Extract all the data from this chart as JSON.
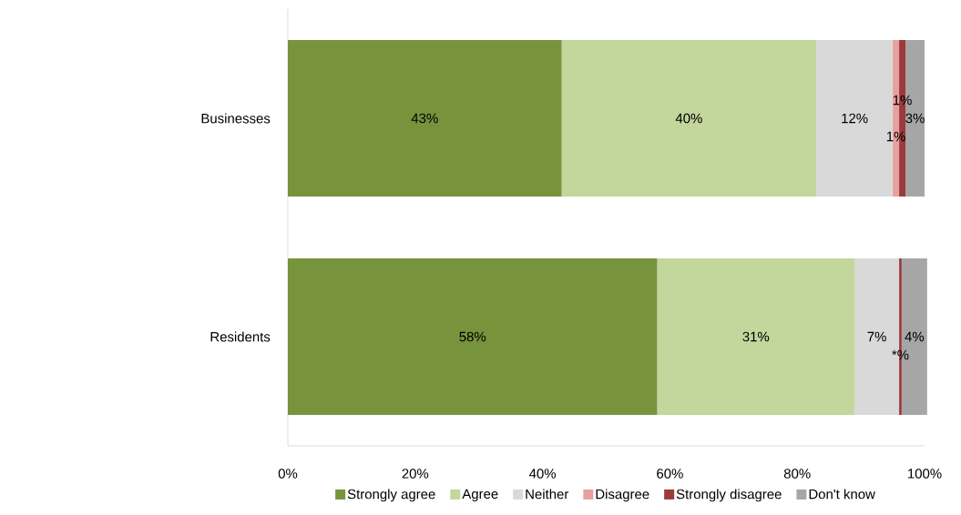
{
  "chart_data": {
    "type": "bar",
    "orientation": "horizontal",
    "stacked": true,
    "categories": [
      "Businesses",
      "Residents"
    ],
    "xlim": [
      0,
      100
    ],
    "xticks": [
      {
        "value": 0,
        "label": "0%"
      },
      {
        "value": 20,
        "label": "20%"
      },
      {
        "value": 40,
        "label": "40%"
      },
      {
        "value": 60,
        "label": "60%"
      },
      {
        "value": 80,
        "label": "80%"
      },
      {
        "value": 100,
        "label": "100%"
      }
    ],
    "legend": "bottom",
    "grid": false,
    "series": [
      {
        "name": "Strongly agree",
        "color": "#77933c",
        "values": [
          43,
          58
        ],
        "value_labels": [
          "43%",
          "58%"
        ]
      },
      {
        "name": "Agree",
        "color": "#c3d69b",
        "values": [
          40,
          31
        ],
        "value_labels": [
          "40%",
          "31%"
        ]
      },
      {
        "name": "Neither",
        "color": "#d9d9d9",
        "values": [
          12,
          7
        ],
        "value_labels": [
          "12%",
          "7%"
        ]
      },
      {
        "name": "Disagree",
        "color": "#e6a0a0",
        "values": [
          1,
          0
        ],
        "value_labels": [
          "1%",
          null
        ]
      },
      {
        "name": "Strongly disagree",
        "color": "#9b3a3a",
        "values": [
          1,
          0.4
        ],
        "value_labels": [
          "1%",
          "*%"
        ]
      },
      {
        "name": "Don't know",
        "color": "#a6a6a6",
        "values": [
          3,
          4
        ],
        "value_labels": [
          "3%",
          "4%"
        ]
      }
    ]
  }
}
